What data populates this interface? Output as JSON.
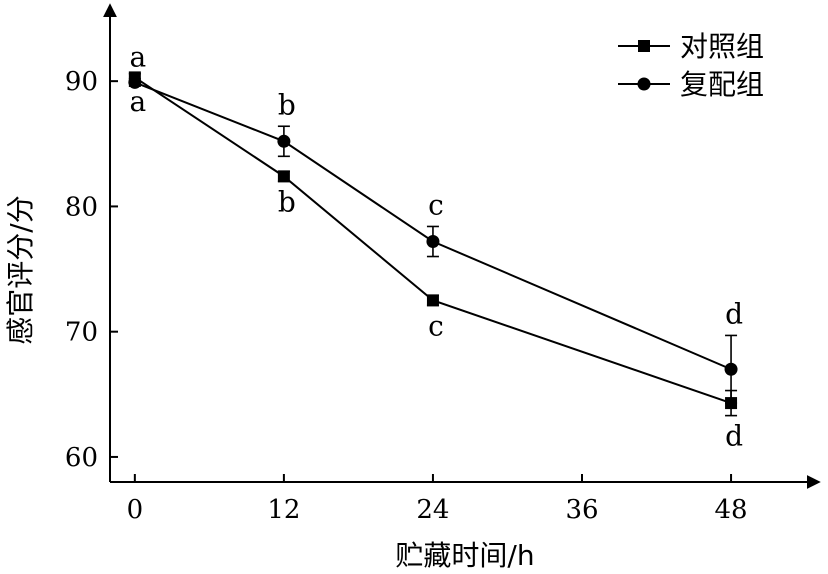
{
  "chart_data": {
    "type": "line",
    "title": "",
    "xlabel": "贮藏时间/h",
    "ylabel": "感官评分/分",
    "x": [
      0,
      12,
      24,
      48
    ],
    "x_ticks": [
      0,
      12,
      24,
      36,
      48
    ],
    "xlim": [
      -2,
      55
    ],
    "y_ticks": [
      60,
      70,
      80,
      90
    ],
    "ylim": [
      58,
      96
    ],
    "grid": false,
    "legend_position": "top-right",
    "series": [
      {
        "name": "对照组",
        "marker": "square",
        "values": [
          90.3,
          82.4,
          72.5,
          64.3
        ],
        "errors": [
          0.3,
          0.4,
          0.4,
          1.0
        ],
        "significance": [
          "a",
          "b",
          "c",
          "d"
        ],
        "sig_side": "below"
      },
      {
        "name": "复配组",
        "marker": "circle",
        "values": [
          89.9,
          85.2,
          77.2,
          67.0
        ],
        "errors": [
          0.3,
          1.2,
          1.2,
          2.7
        ],
        "significance": [
          "a",
          "b",
          "c",
          "d"
        ],
        "sig_side": "above"
      }
    ]
  }
}
